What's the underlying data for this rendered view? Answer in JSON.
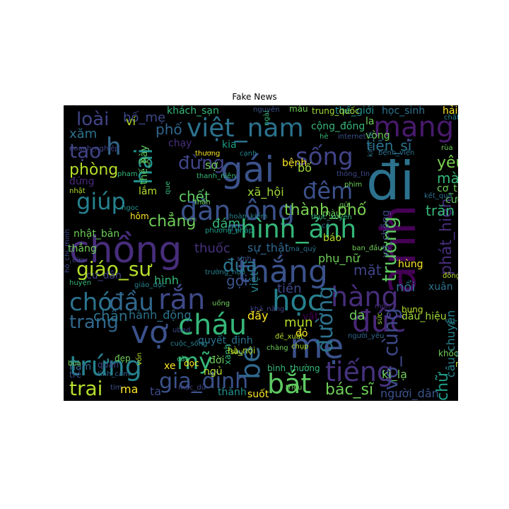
{
  "title": "Fake News",
  "chart_data": {
    "type": "wordcloud",
    "title": "Fake News",
    "background": "#000000",
    "words": [
      {
        "text": "đi",
        "color": "#2c728e"
      },
      {
        "text": "chồng",
        "color": "#472d7b"
      },
      {
        "text": "mẹ",
        "color": "#3b528b"
      },
      {
        "text": "anh",
        "color": "#440154"
      },
      {
        "text": "gái",
        "color": "#3b528b"
      },
      {
        "text": "mạng",
        "color": "#481a6c"
      },
      {
        "text": "thắng",
        "color": "#3b528b"
      },
      {
        "text": "học",
        "color": "#26828e"
      },
      {
        "text": "việt_nam",
        "color": "#2c728e"
      },
      {
        "text": "đàn_ông",
        "color": "#3b528b"
      },
      {
        "text": "hình_ảnh",
        "color": "#35b779"
      },
      {
        "text": "vợ",
        "color": "#3b528b"
      },
      {
        "text": "đức",
        "color": "#482878"
      },
      {
        "text": "hàng",
        "color": "#472d7b"
      },
      {
        "text": "tiếng",
        "color": "#46327e"
      },
      {
        "text": "cháu",
        "color": "#35b779"
      },
      {
        "text": "bắt",
        "color": "#5ec962"
      },
      {
        "text": "trứng",
        "color": "#26828e"
      },
      {
        "text": "chó",
        "color": "#2c728e"
      },
      {
        "text": "đầu",
        "color": "#31688e"
      },
      {
        "text": "rắn",
        "color": "#3e4989"
      },
      {
        "text": "bé",
        "color": "#31688e"
      },
      {
        "text": "sống",
        "color": "#414487"
      },
      {
        "text": "giúp",
        "color": "#26828e"
      },
      {
        "text": "hai",
        "color": "#21918c"
      },
      {
        "text": "đêm",
        "color": "#3b528b"
      },
      {
        "text": "vô_cùng",
        "color": "#3e4989"
      },
      {
        "text": "mỹ",
        "color": "#35b779"
      },
      {
        "text": "đường",
        "color": "#2c728e"
      },
      {
        "text": "trường",
        "color": "#5ec962"
      },
      {
        "text": "h",
        "color": "#31688e"
      },
      {
        "text": "gia_đình",
        "color": "#3b528b"
      },
      {
        "text": "giáo_sư",
        "color": "#b5de2b"
      },
      {
        "text": "trai",
        "color": "#b5de2b"
      },
      {
        "text": "loài",
        "color": "#414487"
      },
      {
        "text": "tạo",
        "color": "#414487"
      },
      {
        "text": "phòng",
        "color": "#b5de2b"
      },
      {
        "text": "trang",
        "color": "#31688e"
      },
      {
        "text": "đứa",
        "color": "#2c728e"
      },
      {
        "text": "đừng",
        "color": "#414487"
      },
      {
        "text": "chẳng",
        "color": "#6ece58"
      },
      {
        "text": "phát_hiện",
        "color": "#472d7b"
      },
      {
        "text": "thành_phố",
        "color": "#7ad151"
      },
      {
        "text": "yêu",
        "color": "#7ad151"
      },
      {
        "text": "mày",
        "color": "#35b779"
      },
      {
        "text": "trăn",
        "color": "#35b779"
      },
      {
        "text": "bác_sĩ",
        "color": "#6ece58"
      },
      {
        "text": "chữ",
        "color": "#1f9e89"
      },
      {
        "text": "câu_chuyện",
        "color": "#26828e"
      },
      {
        "text": "tiến_sĩ",
        "color": "#2c728e"
      },
      {
        "text": "bố_mẹ",
        "color": "#3e4989"
      },
      {
        "text": "xăm",
        "color": "#2c728e"
      },
      {
        "text": "phố",
        "color": "#31688e"
      },
      {
        "text": "chết",
        "color": "#5ec962"
      },
      {
        "text": "đám",
        "color": "#35b779"
      },
      {
        "text": "chân",
        "color": "#2c728e"
      },
      {
        "text": "hành_động",
        "color": "#2c728e"
      },
      {
        "text": "thuốc",
        "color": "#46327e"
      },
      {
        "text": "sự_thật",
        "color": "#31688e"
      },
      {
        "text": "gọi",
        "color": "#3b528b"
      },
      {
        "text": "hình",
        "color": "#35b779"
      },
      {
        "text": "việt",
        "color": "#26828e"
      },
      {
        "text": "mặt",
        "color": "#414487"
      },
      {
        "text": "tiền",
        "color": "#3e4989"
      },
      {
        "text": "phụ_nữ",
        "color": "#6ece58"
      },
      {
        "text": "vợ_chồng",
        "color": "#3e4989"
      },
      {
        "text": "nổi",
        "color": "#2c728e"
      },
      {
        "text": "mụn",
        "color": "#b5de2b"
      },
      {
        "text": "đấy",
        "color": "#fde725"
      },
      {
        "text": "da",
        "color": "#6ece58"
      },
      {
        "text": "người_dân",
        "color": "#3b528b"
      },
      {
        "text": "kì_lạ",
        "color": "#6ece58"
      },
      {
        "text": "dấu_hiệu",
        "color": "#a0da39"
      },
      {
        "text": "khách_sạn",
        "color": "#35b779"
      },
      {
        "text": "cộng_đồng",
        "color": "#35b779"
      },
      {
        "text": "bệnh",
        "color": "#fde725"
      },
      {
        "text": "bố",
        "color": "#a0da39"
      },
      {
        "text": "xã_hội",
        "color": "#a0da39"
      },
      {
        "text": "sợ",
        "color": "#6ece58"
      },
      {
        "text": "chạy",
        "color": "#46327e"
      },
      {
        "text": "kia",
        "color": "#1f9e89"
      },
      {
        "text": "thế_giới",
        "color": "#21918c"
      },
      {
        "text": "học_sinh",
        "color": "#2c728e"
      },
      {
        "text": "hải",
        "color": "#fde725"
      },
      {
        "text": "ví",
        "color": "#b5de2b"
      },
      {
        "text": "nhật_bản",
        "color": "#6ece58"
      },
      {
        "text": "thẳng",
        "color": "#6ece58"
      },
      {
        "text": "đứng",
        "color": "#482878"
      },
      {
        "text": "quyết_định",
        "color": "#2c728e"
      },
      {
        "text": "ma",
        "color": "#fde725"
      },
      {
        "text": "ta",
        "color": "#3e4989"
      },
      {
        "text": "năm",
        "color": "#31688e"
      },
      {
        "text": "cư_dân",
        "color": "#414487"
      },
      {
        "text": "xe",
        "color": "#fde725"
      },
      {
        "text": "ngủ",
        "color": "#b5de2b"
      },
      {
        "text": "đời",
        "color": "#6ece58"
      },
      {
        "text": "suốt",
        "color": "#fde725"
      },
      {
        "text": "thành",
        "color": "#21918c"
      },
      {
        "text": "cưới",
        "color": "#5ec962"
      },
      {
        "text": "thế_này",
        "color": "#5ec962"
      },
      {
        "text": "hùng",
        "color": "#fde725"
      },
      {
        "text": "xuân",
        "color": "#2c728e"
      },
      {
        "text": "vất",
        "color": "#440154"
      },
      {
        "text": "đỏ",
        "color": "#fde725"
      },
      {
        "text": "lắm",
        "color": "#b5de2b"
      },
      {
        "text": "hôm",
        "color": "#fde725"
      },
      {
        "text": "báo",
        "color": "#b5de2b"
      },
      {
        "text": "màu",
        "color": "#6ece58"
      },
      {
        "text": "bung",
        "color": "#b5de2b"
      },
      {
        "text": "la",
        "color": "#6ece58"
      },
      {
        "text": "vòng",
        "color": "#6ece58"
      },
      {
        "text": "cơ_thể",
        "color": "#6ece58"
      },
      {
        "text": "trừ",
        "color": "#2c728e"
      },
      {
        "text": "xanh",
        "color": "#35b779"
      },
      {
        "text": "đẹp",
        "color": "#6ece58"
      },
      {
        "text": "hà_nội",
        "color": "#b5de2b"
      },
      {
        "text": "bình_thường",
        "color": "#35b779"
      },
      {
        "text": "mắc",
        "color": "#b5de2b"
      },
      {
        "text": "trẻ",
        "color": "#3b528b"
      },
      {
        "text": "quân",
        "color": "#3e4989"
      },
      {
        "text": "máu",
        "color": "#6ece58"
      },
      {
        "text": "trung_quốc",
        "color": "#a0da39"
      },
      {
        "text": "nguyên",
        "color": "#3b528b"
      },
      {
        "text": "đọc",
        "color": "#fde725"
      },
      {
        "text": "cạnh",
        "color": "#26828e"
      },
      {
        "text": "thương",
        "color": "#fde725"
      },
      {
        "text": "thanh_niên",
        "color": "#35b779"
      },
      {
        "text": "thông_tin",
        "color": "#3e4989"
      },
      {
        "text": "kết_quả",
        "color": "#2c728e"
      },
      {
        "text": "phương_pháp",
        "color": "#1f9e89"
      },
      {
        "text": "trường_hợp",
        "color": "#26828e"
      },
      {
        "text": "hoàn_kiếm",
        "color": "#26828e"
      },
      {
        "text": "thực_xuyên",
        "color": "#35b779"
      },
      {
        "text": "ma_quỷ",
        "color": "#2c728e"
      },
      {
        "text": "sinh",
        "color": "#3b528b"
      },
      {
        "text": "khả_năng",
        "color": "#414487"
      },
      {
        "text": "cuộc_sống",
        "color": "#26828e"
      },
      {
        "text": "doanh_nghiệp",
        "color": "#414487"
      },
      {
        "text": "bệnh_viện",
        "color": "#2c728e"
      },
      {
        "text": "tình_cảm",
        "color": "#31688e"
      },
      {
        "text": "giáo_dục",
        "color": "#26828e"
      },
      {
        "text": "người_yêu",
        "color": "#31688e"
      },
      {
        "text": "khóc",
        "color": "#6ece58"
      },
      {
        "text": "chàng",
        "color": "#6ece58"
      },
      {
        "text": "đề_xuất",
        "color": "#b5de2b"
      },
      {
        "text": "chụp",
        "color": "#b5de2b"
      },
      {
        "text": "sâu",
        "color": "#b5de2b"
      },
      {
        "text": "chất",
        "color": "#26828e"
      },
      {
        "text": "câu",
        "color": "#35b779"
      },
      {
        "text": "rùa",
        "color": "#6ece58"
      },
      {
        "text": "gửi",
        "color": "#6ece58"
      },
      {
        "text": "cá",
        "color": "#2c728e"
      },
      {
        "text": "mỏn",
        "color": "#472d7b"
      },
      {
        "text": "bùa",
        "color": "#6ece58"
      },
      {
        "text": "vốn",
        "color": "#b5de2b"
      },
      {
        "text": "mặc_dù",
        "color": "#3e4989"
      },
      {
        "text": "tim",
        "color": "#3b528b"
      },
      {
        "text": "triệu",
        "color": "#6ece58"
      },
      {
        "text": "ngoc",
        "color": "#21918c"
      },
      {
        "text": "pham",
        "color": "#35b779"
      },
      {
        "text": "sốc",
        "color": "#6ece58"
      },
      {
        "text": "nhật",
        "color": "#b5de2b"
      },
      {
        "text": "ubnd",
        "color": "#3e4989"
      },
      {
        "text": "huyện",
        "color": "#35b779"
      },
      {
        "text": "đông",
        "color": "#b5de2b"
      },
      {
        "text": "uống",
        "color": "#6ece58"
      },
      {
        "text": "cũ",
        "color": "#26828e"
      },
      {
        "text": "sức",
        "color": "#a0da39"
      },
      {
        "text": "ban_đầu",
        "color": "#6ece58"
      },
      {
        "text": "đà",
        "color": "#3e4989"
      },
      {
        "text": "hè",
        "color": "#35b779"
      },
      {
        "text": "internet",
        "color": "#3b528b"
      },
      {
        "text": "thần",
        "color": "#6ece58"
      },
      {
        "text": "phim",
        "color": "#6ece58"
      },
      {
        "text": "ngài",
        "color": "#35b779"
      },
      {
        "text": "cửa",
        "color": "#3e4989"
      },
      {
        "text": "hồ_chí_minh",
        "color": "#3e4989"
      },
      {
        "text": "que",
        "color": "#35b779"
      },
      {
        "text": "kinh_dị",
        "color": "#2c728e"
      },
      {
        "text": "liệu",
        "color": "#472d7b"
      }
    ]
  }
}
